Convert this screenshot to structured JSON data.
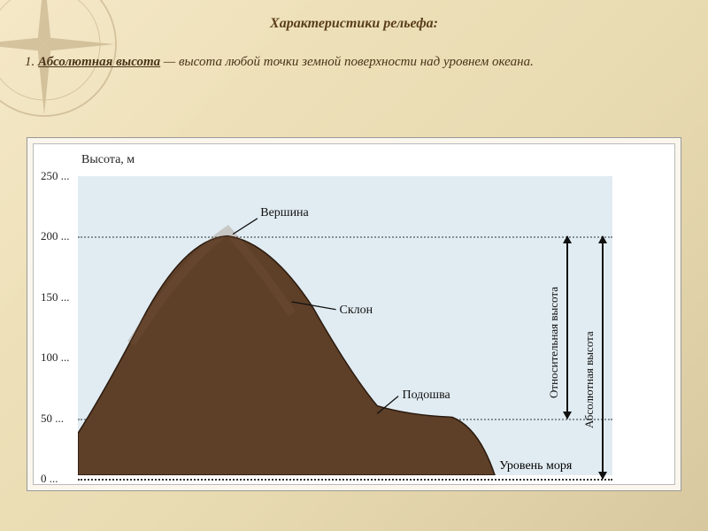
{
  "title": "Характеристики рельефа:",
  "definition_number": "1.",
  "definition_term": "Абсолютная высота",
  "definition_dash": " — ",
  "definition_body": "высота любой точки земной поверхности над уровнем океана.",
  "chart": {
    "type": "terrain-profile",
    "y_axis_label": "Высота, м",
    "ylim": [
      0,
      250
    ],
    "yticks": [
      0,
      50,
      100,
      150,
      200,
      250
    ],
    "ytick_labels": [
      "0 ...",
      "50 ...",
      "100 ...",
      "150 ...",
      "200 ...",
      "250 ..."
    ],
    "dotted_lines_at": [
      0,
      50,
      200
    ],
    "peak_height": 200,
    "foot_height": 50,
    "sea_level": 0,
    "callouts": {
      "peak": "Вершина",
      "slope": "Склон",
      "foot": "Подошва"
    },
    "sea_label": "Уровень моря",
    "arrow_labels": {
      "relative": "Относительная высота",
      "absolute": "Абсолютная высота"
    },
    "colors": {
      "mountain_fill": "#5e3f28",
      "mountain_highlight": "#7a563a",
      "sky": "#c8dde8",
      "sea": "#3a7ab8",
      "background": "#ffffff",
      "dotted": "#333333",
      "text": "#111111"
    },
    "fonts": {
      "axis": 14,
      "tick": 13,
      "callout": 14
    }
  }
}
